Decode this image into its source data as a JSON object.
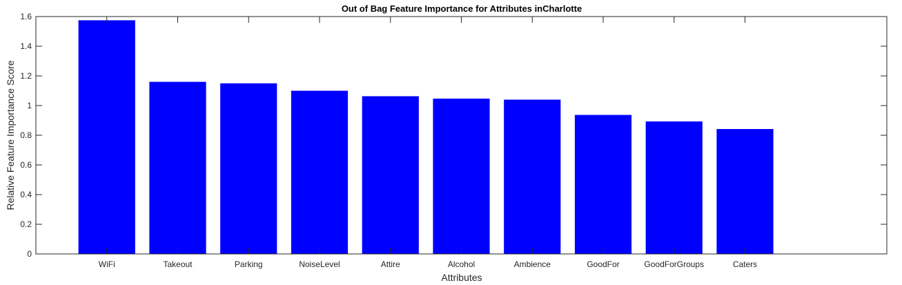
{
  "chart_data": {
    "type": "bar",
    "title": "Out of Bag Feature Importance for Attributes inCharlotte",
    "xlabel": "Attributes",
    "ylabel": "Relative Feature Importance Score",
    "categories": [
      "WiFi",
      "Takeout",
      "Parking",
      "NoiseLevel",
      "Attire",
      "Alcohol",
      "Ambience",
      "GoodFor",
      "GoodForGroups",
      "Caters"
    ],
    "values": [
      1.575,
      1.16,
      1.15,
      1.1,
      1.063,
      1.047,
      1.04,
      0.937,
      0.893,
      0.842
    ],
    "ylim": [
      0,
      1.6
    ],
    "yticks": [
      0,
      0.2,
      0.4,
      0.6,
      0.8,
      1,
      1.2,
      1.4,
      1.6
    ],
    "ytick_labels": [
      "0",
      "0.2",
      "0.4",
      "0.6",
      "0.8",
      "1",
      "1.2",
      "1.4",
      "1.6"
    ],
    "xlim": [
      0,
      12
    ],
    "grid": false,
    "legend": "none",
    "colors": {
      "bar": "#0000ff",
      "axes": "#262626",
      "background": "#ffffff"
    }
  }
}
